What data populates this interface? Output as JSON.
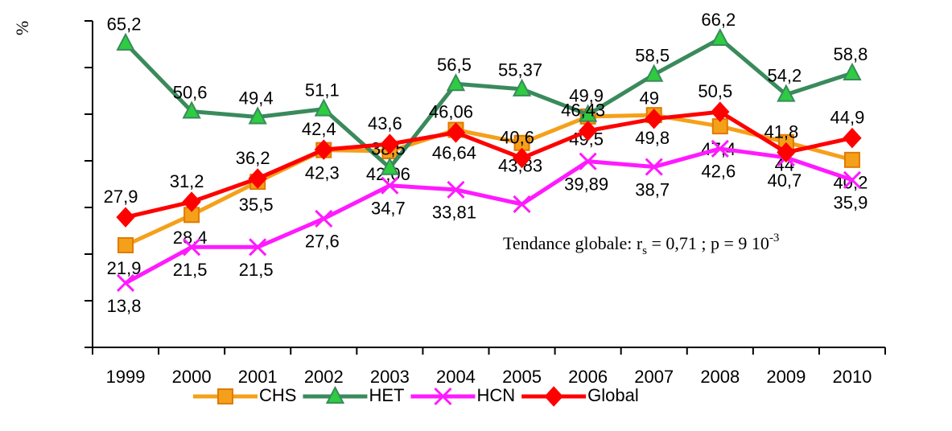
{
  "chart_data": {
    "type": "line",
    "y_label": "%",
    "categories": [
      "1999",
      "2000",
      "2001",
      "2002",
      "2003",
      "2004",
      "2005",
      "2006",
      "2007",
      "2008",
      "2009",
      "2010"
    ],
    "ylim": [
      0,
      70
    ],
    "yticks": [
      0,
      10,
      20,
      30,
      40,
      50,
      60,
      70
    ],
    "series": [
      {
        "name": "CHS",
        "color": "#f5a01a",
        "marker": "square",
        "values": [
          21.9,
          28.4,
          35.5,
          42.3,
          42.06,
          46.64,
          43.83,
          49.5,
          49.8,
          47.4,
          44,
          40.2
        ],
        "value_labels": [
          "21,9",
          "28,4",
          "35,5",
          "42,3",
          "42,06",
          "46,64",
          "43,83",
          "49,5",
          "49,8",
          "47,4",
          "44",
          "40,2"
        ]
      },
      {
        "name": "HET",
        "color": "#3a8a5c",
        "marker": "triangle",
        "values": [
          65.2,
          50.6,
          49.4,
          51.1,
          38.5,
          56.5,
          55.37,
          49.9,
          58.5,
          66.2,
          54.2,
          58.8
        ],
        "value_labels": [
          "65,2",
          "50,6",
          "49,4",
          "51,1",
          "38,5",
          "56,5",
          "55,37",
          "49,9",
          "58,5",
          "66,2",
          "54,2",
          "58,8"
        ]
      },
      {
        "name": "HCN",
        "color": "#ff1aff",
        "marker": "cross",
        "values": [
          13.8,
          21.5,
          21.5,
          27.6,
          34.7,
          33.81,
          30.7,
          39.89,
          38.7,
          42.6,
          40.7,
          35.9
        ],
        "value_labels": [
          "13,8",
          "21,5",
          "21,5",
          "27,6",
          "34,7",
          "33,81",
          null,
          "39,89",
          "38,7",
          "42,6",
          "40,7",
          "35,9"
        ]
      },
      {
        "name": "Global",
        "color": "#ff0000",
        "marker": "diamond",
        "values": [
          27.9,
          31.2,
          36.2,
          42.4,
          43.6,
          46.06,
          40.6,
          46.43,
          49,
          50.5,
          41.8,
          44.9
        ],
        "value_labels": [
          "27,9",
          "31,2",
          "36,2",
          "42,4",
          "43,6",
          "46,06",
          "40,6",
          "46,43",
          "49",
          "50,5",
          "41,8",
          "44,9"
        ]
      }
    ],
    "annotation": {
      "text": "Tendance globale:  r",
      "sub": "s",
      "mid": " = 0,71 ; p = 9 10",
      "sup": "-3"
    },
    "legend": "bottom"
  }
}
